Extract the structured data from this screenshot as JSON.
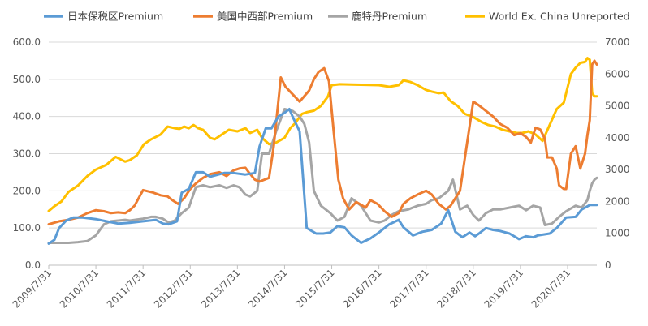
{
  "chart_data": {
    "type": "line",
    "title": "",
    "xlabel": "",
    "ylabel": "",
    "left_axis": {
      "min": 0,
      "max": 600,
      "ticks": [
        "0.0",
        "100.0",
        "200.0",
        "300.0",
        "400.0",
        "500.0",
        "600.0"
      ]
    },
    "right_axis": {
      "min": 0,
      "max": 7000,
      "ticks": [
        "0",
        "1000",
        "2000",
        "3000",
        "4000",
        "5000",
        "6000",
        "7000"
      ]
    },
    "x_tick_labels": [
      "2009/7/31",
      "2010/7/31",
      "2011/7/31",
      "2012/7/31",
      "2013/7/31",
      "2014/7/31",
      "2015/7/31",
      "2016/7/31",
      "2017/7/31",
      "2018/7/31",
      "2019/7/31",
      "2020/7/31"
    ],
    "x_range": [
      2009.58,
      2021.2
    ],
    "grid": "horizontal",
    "legend_position": "top",
    "series": [
      {
        "name": "日本保税区Premium",
        "axis": "left",
        "color": "#5b9bd5",
        "x": [
          2009.58,
          2009.7,
          2009.8,
          2009.95,
          2010.1,
          2010.3,
          2010.58,
          2010.8,
          2011.05,
          2011.3,
          2011.58,
          2011.85,
          2012.0,
          2012.12,
          2012.3,
          2012.4,
          2012.55,
          2012.7,
          2012.85,
          2013.0,
          2013.3,
          2013.5,
          2013.62,
          2013.75,
          2013.95,
          2014.05,
          2014.18,
          2014.3,
          2014.45,
          2014.58,
          2014.68,
          2014.75,
          2014.9,
          2015.05,
          2015.25,
          2015.4,
          2015.55,
          2015.7,
          2015.85,
          2016.0,
          2016.2,
          2016.4,
          2016.58,
          2016.8,
          2017.0,
          2017.1,
          2017.3,
          2017.5,
          2017.7,
          2017.9,
          2018.05,
          2018.2,
          2018.35,
          2018.5,
          2018.62,
          2018.7,
          2018.85,
          2019.0,
          2019.15,
          2019.35,
          2019.55,
          2019.7,
          2019.85,
          2019.95,
          2020.05,
          2020.2,
          2020.35,
          2020.55,
          2020.75,
          2020.88,
          2021.05,
          2021.15,
          2021.2
        ],
        "values": [
          58,
          68,
          100,
          120,
          128,
          128,
          124,
          118,
          112,
          114,
          118,
          122,
          112,
          110,
          118,
          195,
          205,
          250,
          250,
          238,
          248,
          248,
          246,
          244,
          248,
          320,
          368,
          368,
          400,
          410,
          420,
          400,
          360,
          100,
          85,
          85,
          88,
          105,
          102,
          80,
          60,
          72,
          88,
          110,
          122,
          102,
          80,
          90,
          95,
          112,
          148,
          90,
          75,
          88,
          78,
          85,
          100,
          95,
          92,
          85,
          70,
          78,
          75,
          80,
          82,
          85,
          100,
          128,
          130,
          150,
          162,
          162,
          162
        ]
      },
      {
        "name": "美国中西部Premium",
        "axis": "left",
        "color": "#ed7d31",
        "x": [
          2009.58,
          2009.8,
          2010.0,
          2010.2,
          2010.4,
          2010.58,
          2010.75,
          2010.9,
          2011.05,
          2011.2,
          2011.3,
          2011.4,
          2011.58,
          2011.8,
          2011.95,
          2012.1,
          2012.2,
          2012.32,
          2012.45,
          2012.58,
          2012.7,
          2012.85,
          2013.0,
          2013.2,
          2013.35,
          2013.5,
          2013.62,
          2013.75,
          2013.82,
          2013.95,
          2014.05,
          2014.15,
          2014.25,
          2014.35,
          2014.5,
          2014.6,
          2014.75,
          2014.9,
          2015.0,
          2015.1,
          2015.2,
          2015.3,
          2015.42,
          2015.52,
          2015.62,
          2015.72,
          2015.82,
          2015.95,
          2016.1,
          2016.3,
          2016.4,
          2016.55,
          2016.7,
          2016.85,
          2017.0,
          2017.1,
          2017.25,
          2017.4,
          2017.58,
          2017.7,
          2017.85,
          2018.0,
          2018.1,
          2018.2,
          2018.3,
          2018.45,
          2018.58,
          2018.7,
          2018.85,
          2019.0,
          2019.15,
          2019.3,
          2019.45,
          2019.58,
          2019.7,
          2019.8,
          2019.9,
          2020.0,
          2020.1,
          2020.15,
          2020.25,
          2020.35,
          2020.4,
          2020.5,
          2020.55,
          2020.65,
          2020.75,
          2020.85,
          2020.95,
          2021.0,
          2021.05,
          2021.1,
          2021.15,
          2021.2
        ],
        "values": [
          110,
          118,
          122,
          128,
          140,
          148,
          145,
          140,
          142,
          140,
          148,
          160,
          202,
          195,
          188,
          185,
          175,
          165,
          180,
          205,
          220,
          235,
          245,
          250,
          240,
          255,
          260,
          262,
          250,
          230,
          225,
          230,
          235,
          320,
          505,
          480,
          460,
          440,
          455,
          470,
          500,
          520,
          530,
          495,
          360,
          230,
          180,
          150,
          170,
          155,
          175,
          165,
          145,
          130,
          140,
          165,
          180,
          190,
          200,
          190,
          165,
          150,
          160,
          180,
          200,
          330,
          440,
          430,
          415,
          400,
          380,
          370,
          350,
          355,
          345,
          330,
          370,
          365,
          340,
          290,
          290,
          260,
          215,
          205,
          205,
          300,
          320,
          260,
          300,
          350,
          390,
          540,
          550,
          540
        ]
      },
      {
        "name": "鹿特丹Premium",
        "axis": "left",
        "color": "#a5a5a5",
        "x": [
          2009.58,
          2009.8,
          2010.0,
          2010.2,
          2010.4,
          2010.58,
          2010.75,
          2010.9,
          2011.05,
          2011.2,
          2011.3,
          2011.58,
          2011.75,
          2011.85,
          2012.0,
          2012.12,
          2012.25,
          2012.4,
          2012.55,
          2012.7,
          2012.85,
          2013.0,
          2013.2,
          2013.35,
          2013.5,
          2013.62,
          2013.75,
          2013.85,
          2014.0,
          2014.1,
          2014.25,
          2014.4,
          2014.58,
          2014.75,
          2014.9,
          2015.0,
          2015.1,
          2015.2,
          2015.35,
          2015.55,
          2015.7,
          2015.85,
          2016.0,
          2016.2,
          2016.4,
          2016.58,
          2016.7,
          2016.85,
          2017.0,
          2017.2,
          2017.4,
          2017.58,
          2017.7,
          2017.85,
          2018.05,
          2018.15,
          2018.3,
          2018.45,
          2018.58,
          2018.7,
          2018.85,
          2019.0,
          2019.15,
          2019.35,
          2019.55,
          2019.7,
          2019.85,
          2020.0,
          2020.1,
          2020.25,
          2020.4,
          2020.55,
          2020.75,
          2020.88,
          2021.0,
          2021.05,
          2021.1,
          2021.15,
          2021.2
        ],
        "values": [
          60,
          60,
          60,
          62,
          65,
          80,
          110,
          118,
          120,
          122,
          120,
          125,
          130,
          130,
          125,
          115,
          120,
          140,
          155,
          210,
          215,
          210,
          215,
          208,
          215,
          210,
          190,
          185,
          200,
          300,
          300,
          360,
          420,
          415,
          400,
          380,
          330,
          200,
          160,
          140,
          120,
          130,
          180,
          160,
          120,
          115,
          120,
          135,
          145,
          150,
          160,
          165,
          175,
          180,
          200,
          230,
          150,
          160,
          135,
          120,
          140,
          150,
          150,
          155,
          160,
          148,
          160,
          155,
          108,
          112,
          130,
          145,
          160,
          155,
          175,
          200,
          220,
          230,
          235
        ]
      },
      {
        "name": "World Ex. China Unreported",
        "axis": "right",
        "color": "#ffc000",
        "x": [
          2009.58,
          2009.7,
          2009.85,
          2010.0,
          2010.2,
          2010.4,
          2010.58,
          2010.8,
          2011.0,
          2011.2,
          2011.3,
          2011.45,
          2011.6,
          2011.75,
          2011.95,
          2012.1,
          2012.25,
          2012.35,
          2012.45,
          2012.55,
          2012.65,
          2012.75,
          2012.85,
          2013.0,
          2013.1,
          2013.25,
          2013.4,
          2013.58,
          2013.75,
          2013.85,
          2014.0,
          2014.1,
          2014.25,
          2014.4,
          2014.58,
          2014.7,
          2014.8,
          2014.95,
          2015.05,
          2015.2,
          2015.35,
          2015.5,
          2015.58,
          2015.75,
          2016.0,
          2016.3,
          2016.58,
          2016.8,
          2017.0,
          2017.1,
          2017.25,
          2017.4,
          2017.58,
          2017.7,
          2017.85,
          2017.95,
          2018.1,
          2018.25,
          2018.4,
          2018.58,
          2018.75,
          2018.9,
          2019.05,
          2019.2,
          2019.35,
          2019.5,
          2019.62,
          2019.75,
          2019.9,
          2020.05,
          2020.2,
          2020.35,
          2020.5,
          2020.65,
          2020.75,
          2020.85,
          2020.95,
          2021.0,
          2021.05,
          2021.1,
          2021.15,
          2021.2
        ],
        "values": [
          1700,
          1850,
          2000,
          2300,
          2500,
          2800,
          3000,
          3150,
          3400,
          3250,
          3300,
          3450,
          3800,
          3950,
          4100,
          4350,
          4300,
          4280,
          4350,
          4300,
          4400,
          4300,
          4250,
          4000,
          3950,
          4100,
          4250,
          4200,
          4300,
          4150,
          4250,
          4000,
          3800,
          3850,
          4000,
          4300,
          4450,
          4750,
          4800,
          4850,
          5000,
          5300,
          5650,
          5680,
          5670,
          5660,
          5650,
          5600,
          5650,
          5800,
          5750,
          5650,
          5500,
          5450,
          5400,
          5420,
          5150,
          5000,
          4750,
          4650,
          4500,
          4400,
          4350,
          4250,
          4200,
          4150,
          4150,
          4200,
          4100,
          3900,
          4400,
          4900,
          5100,
          6000,
          6200,
          6350,
          6380,
          6500,
          6450,
          5400,
          5300,
          5300
        ]
      }
    ]
  }
}
